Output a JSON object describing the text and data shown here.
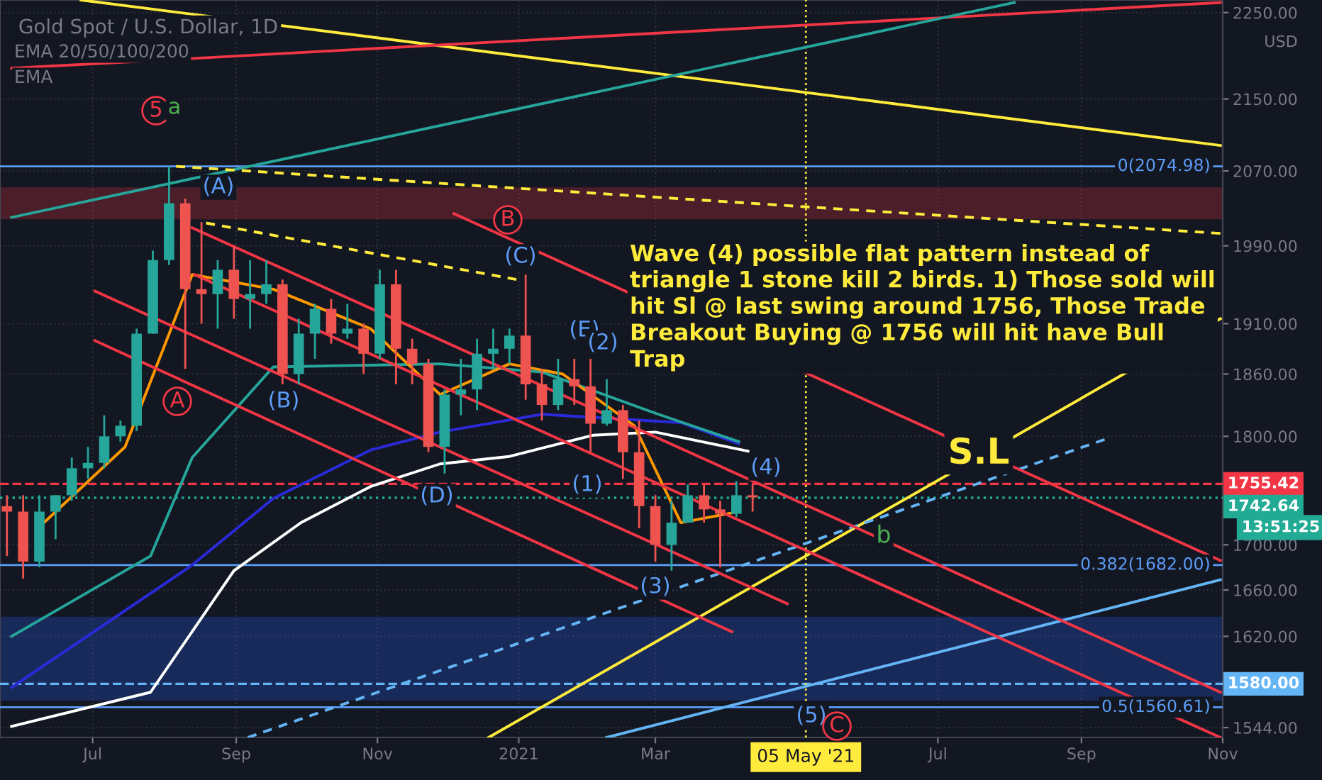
{
  "chart_data": {
    "type": "candlestick",
    "title": "Gold Spot / U.S. Dollar, 1D",
    "log": "y",
    "grid": true,
    "xlim": [
      "2020-05-22",
      "2021-11-01"
    ],
    "ylim": [
      1536,
      2265
    ],
    "xticks": [
      {
        "value": "2020-07-01",
        "label": "Jul"
      },
      {
        "value": "2020-09-01",
        "label": "Sep"
      },
      {
        "value": "2020-11-01",
        "label": "Nov"
      },
      {
        "value": "2021-01-01",
        "label": "2021"
      },
      {
        "value": "2021-03-01",
        "label": "Mar"
      },
      {
        "value": "2021-07-01",
        "label": "Jul"
      },
      {
        "value": "2021-09-01",
        "label": "Sep"
      },
      {
        "value": "2021-11-01",
        "label": "Nov"
      }
    ],
    "yticks": [
      {
        "value": 1544,
        "label": "1544.00"
      },
      {
        "value": 1620,
        "label": "1620.00"
      },
      {
        "value": 1660,
        "label": "1660.00"
      },
      {
        "value": 1700,
        "label": "1700.00"
      },
      {
        "value": 1800,
        "label": "1800.00"
      },
      {
        "value": 1860,
        "label": "1860.00"
      },
      {
        "value": 1910,
        "label": "1910.00"
      },
      {
        "value": 1990,
        "label": "1990.00"
      },
      {
        "value": 2070,
        "label": "2070.00"
      },
      {
        "value": 2150,
        "label": "2150.00"
      },
      {
        "value": 2250,
        "label": "2250.00"
      }
    ],
    "series": [
      {
        "x": [
          "2020-05-25",
          "2020-06-01",
          "2020-06-08",
          "2020-06-15",
          "2020-06-22",
          "2020-06-29",
          "2020-07-06",
          "2020-07-13",
          "2020-07-20",
          "2020-07-27",
          "2020-08-03",
          "2020-08-10",
          "2020-08-17",
          "2020-08-24",
          "2020-08-31",
          "2020-09-07",
          "2020-09-14",
          "2020-09-21",
          "2020-09-28",
          "2020-10-05",
          "2020-10-12",
          "2020-10-19",
          "2020-10-26",
          "2020-11-02",
          "2020-11-09",
          "2020-11-16",
          "2020-11-23",
          "2020-11-30",
          "2020-12-07",
          "2020-12-14",
          "2020-12-21",
          "2020-12-28",
          "2021-01-04",
          "2021-01-11",
          "2021-01-18",
          "2021-01-25",
          "2021-02-01",
          "2021-02-08",
          "2021-02-15",
          "2021-02-22",
          "2021-03-01",
          "2021-03-08",
          "2021-03-15",
          "2021-03-22",
          "2021-03-29",
          "2021-04-05",
          "2021-04-12"
        ],
        "ohlc": [
          [
            1735,
            1745,
            1690,
            1730
          ],
          [
            1730,
            1745,
            1670,
            1685
          ],
          [
            1685,
            1745,
            1680,
            1730
          ],
          [
            1730,
            1745,
            1705,
            1745
          ],
          [
            1745,
            1780,
            1740,
            1770
          ],
          [
            1770,
            1790,
            1760,
            1775
          ],
          [
            1775,
            1820,
            1770,
            1800
          ],
          [
            1800,
            1815,
            1795,
            1810
          ],
          [
            1810,
            1905,
            1805,
            1900
          ],
          [
            1900,
            1985,
            1900,
            1975
          ],
          [
            1975,
            2075,
            1970,
            2035
          ],
          [
            2035,
            2040,
            1865,
            1945
          ],
          [
            1945,
            2015,
            1910,
            1940
          ],
          [
            1940,
            1975,
            1905,
            1965
          ],
          [
            1965,
            1990,
            1915,
            1935
          ],
          [
            1935,
            1975,
            1905,
            1940
          ],
          [
            1940,
            1975,
            1930,
            1950
          ],
          [
            1950,
            1955,
            1850,
            1860
          ],
          [
            1860,
            1915,
            1850,
            1900
          ],
          [
            1900,
            1930,
            1875,
            1925
          ],
          [
            1925,
            1935,
            1890,
            1900
          ],
          [
            1900,
            1930,
            1895,
            1905
          ],
          [
            1905,
            1910,
            1860,
            1880
          ],
          [
            1880,
            1965,
            1875,
            1950
          ],
          [
            1950,
            1965,
            1850,
            1885
          ],
          [
            1885,
            1895,
            1850,
            1870
          ],
          [
            1870,
            1875,
            1785,
            1790
          ],
          [
            1790,
            1845,
            1765,
            1840
          ],
          [
            1840,
            1875,
            1820,
            1845
          ],
          [
            1845,
            1895,
            1825,
            1880
          ],
          [
            1880,
            1905,
            1865,
            1885
          ],
          [
            1885,
            1905,
            1870,
            1898
          ],
          [
            1898,
            1960,
            1835,
            1850
          ],
          [
            1850,
            1865,
            1815,
            1830
          ],
          [
            1830,
            1875,
            1825,
            1855
          ],
          [
            1855,
            1875,
            1830,
            1848
          ],
          [
            1848,
            1875,
            1785,
            1812
          ],
          [
            1812,
            1855,
            1810,
            1825
          ],
          [
            1825,
            1830,
            1760,
            1785
          ],
          [
            1785,
            1815,
            1715,
            1735
          ],
          [
            1735,
            1745,
            1685,
            1700
          ],
          [
            1700,
            1740,
            1677,
            1720
          ],
          [
            1720,
            1755,
            1720,
            1745
          ],
          [
            1745,
            1755,
            1720,
            1732
          ],
          [
            1732,
            1740,
            1680,
            1728
          ],
          [
            1728,
            1758,
            1725,
            1745
          ],
          [
            1745,
            1755,
            1730,
            1743
          ]
        ],
        "colors": [
          "#ef5350",
          "#ef5350",
          "#26a69a",
          "#26a69a",
          "#26a69a",
          "#26a69a",
          "#26a69a",
          "#26a69a",
          "#26a69a",
          "#26a69a",
          "#26a69a",
          "#ef5350",
          "#ef5350",
          "#26a69a",
          "#ef5350",
          "#26a69a",
          "#26a69a",
          "#ef5350",
          "#26a69a",
          "#26a69a",
          "#ef5350",
          "#26a69a",
          "#ef5350",
          "#26a69a",
          "#ef5350",
          "#ef5350",
          "#ef5350",
          "#26a69a",
          "#26a69a",
          "#26a69a",
          "#26a69a",
          "#26a69a",
          "#ef5350",
          "#ef5350",
          "#26a69a",
          "#ef5350",
          "#ef5350",
          "#26a69a",
          "#ef5350",
          "#ef5350",
          "#ef5350",
          "#26a69a",
          "#26a69a",
          "#ef5350",
          "#ef5350",
          "#26a69a",
          "#ef5350"
        ]
      },
      {
        "type": "line",
        "color": "#ffffff",
        "x": [
          "2020-05-27",
          "2020-07-26",
          "2020-08-31",
          "2020-09-29",
          "2020-10-29",
          "2020-11-28",
          "2020-12-28",
          "2021-02-02",
          "2021-03-01",
          "2021-04-10"
        ],
        "values": [
          1545,
          1573,
          1677,
          1720,
          1753,
          1774,
          1781,
          1801,
          1804,
          1786
        ]
      },
      {
        "type": "line",
        "color": "#2a2ad8",
        "x": [
          "2020-05-27",
          "2020-08-13",
          "2020-09-17",
          "2020-10-29",
          "2020-11-28",
          "2021-01-11",
          "2021-03-12",
          "2021-04-06"
        ],
        "values": [
          1577,
          1682,
          1742,
          1787,
          1804,
          1821,
          1813,
          1793
        ]
      },
      {
        "type": "line",
        "color": "#26a69a",
        "x": [
          "2020-05-27",
          "2020-07-26",
          "2020-08-13",
          "2020-09-17",
          "2020-11-28",
          "2021-01-11",
          "2021-03-01",
          "2021-04-06"
        ],
        "values": [
          1620,
          1690,
          1780,
          1867,
          1870,
          1862,
          1822,
          1795
        ]
      },
      {
        "type": "line",
        "color": "#ff9800",
        "x": [
          "2020-06-10",
          "2020-07-15",
          "2020-08-13",
          "2020-09-17",
          "2020-10-29",
          "2020-11-28",
          "2020-12-28",
          "2021-01-20",
          "2021-02-20",
          "2021-03-12",
          "2021-04-06"
        ],
        "values": [
          1720,
          1790,
          1960,
          1945,
          1905,
          1840,
          1870,
          1860,
          1810,
          1720,
          1730
        ]
      },
      {
        "type": "line",
        "color": "#ffeb3b",
        "x": [
          "2020-06-26",
          "2021-10-31"
        ],
        "values": [
          2265,
          2098
        ]
      },
      {
        "type": "line",
        "color": "#f23645",
        "x": [
          "2020-05-27",
          "2021-10-31"
        ],
        "values": [
          2185,
          2262
        ]
      },
      {
        "type": "line",
        "color": "#26a69a",
        "x": [
          "2020-05-27",
          "2021-08-03"
        ],
        "values": [
          2020,
          2262
        ]
      },
      {
        "type": "line",
        "color": "#ffeb3b",
        "line_style": "dashed",
        "x": [
          "2020-08-06",
          "2021-10-31"
        ],
        "values": [
          2075,
          2003
        ]
      },
      {
        "type": "line",
        "color": "#ffeb3b",
        "line_style": "dashed",
        "x": [
          "2020-08-19",
          "2020-12-31"
        ],
        "values": [
          2014,
          1955
        ]
      },
      {
        "type": "line",
        "color": "#ffeb3b",
        "x": [
          "2020-12-19",
          "2021-10-31"
        ],
        "values": [
          1536,
          1915
        ]
      },
      {
        "type": "line",
        "color": "#64b5f6",
        "line_style": "dashed",
        "x": [
          "2020-09-06",
          "2021-09-11"
        ],
        "values": [
          1536,
          1797
        ]
      },
      {
        "type": "line",
        "color": "#64b5f6",
        "x": [
          "2021-02-08",
          "2021-10-31"
        ],
        "values": [
          1536,
          1669
        ]
      },
      {
        "type": "line",
        "color": "#f23645",
        "x": [
          "2020-08-14",
          "2021-10-31"
        ],
        "values": [
          1960,
          1536
        ]
      },
      {
        "type": "line",
        "color": "#f23645",
        "x": [
          "2020-08-13",
          "2021-10-31"
        ],
        "values": [
          2009,
          1573
        ]
      },
      {
        "type": "line",
        "color": "#f23645",
        "x": [
          "2020-12-04",
          "2021-10-31"
        ],
        "values": [
          2024,
          1686
        ]
      },
      {
        "type": "line",
        "color": "#f23645",
        "x": [
          "2020-07-02",
          "2021-04-27"
        ],
        "values": [
          1943,
          1648
        ]
      },
      {
        "type": "line",
        "color": "#f23645",
        "x": [
          "2020-07-02",
          "2021-04-03"
        ],
        "values": [
          1893,
          1624
        ]
      }
    ],
    "ref_lines": [
      {
        "axis": "y",
        "value": 2074.98,
        "label": "0(2074.98)",
        "color": "#5b9cf6",
        "line_style": "solid"
      },
      {
        "axis": "y",
        "value": 1682.0,
        "label": "0.382(1682.00)",
        "color": "#5b9cf6",
        "line_style": "solid"
      },
      {
        "axis": "y",
        "value": 1560.61,
        "label": "0.5(1560.61)",
        "color": "#5b9cf6",
        "line_style": "solid"
      },
      {
        "axis": "y",
        "value": 1580.0,
        "label": "1580.00",
        "color": "#64b5f6",
        "line_style": "dashed"
      },
      {
        "axis": "y",
        "value": 1755.42,
        "label": "1755.42",
        "color": "#f23645",
        "line_style": "dashed"
      },
      {
        "axis": "y",
        "value": 1742.64,
        "label": "1742.64",
        "color": "#22ab94",
        "line_style": "dotted"
      },
      {
        "axis": "x",
        "value": "2021-05-05",
        "label": "05 May '21",
        "color": "#ffeb3b",
        "line_style": "dotted"
      }
    ],
    "bands": [
      {
        "axis": "y",
        "from": 1567,
        "to": 1636,
        "color": "#2962ff"
      },
      {
        "axis": "y",
        "from": 2019,
        "to": 2051,
        "color": "#f23645"
      }
    ],
    "annotations": [
      "5",
      "a",
      "(A)",
      "A",
      "(B)",
      "B",
      "(C)",
      "(D)",
      "(E)",
      "(1)",
      "(2)",
      "(3)",
      "(4)",
      "(5)",
      "C",
      "b",
      "S.L",
      "Wave (4) possible flat pattern instead of\ntriangle 1 stone kill 2 birds. 1) Those sold will\nhit Sl @ last swing around 1756, Those Trade\nBreakout Buying @ 1756 will hit have Bull\nTrap",
      "EMA 20/50/100/200",
      "EMA",
      "USD",
      "13:51:25"
    ]
  }
}
